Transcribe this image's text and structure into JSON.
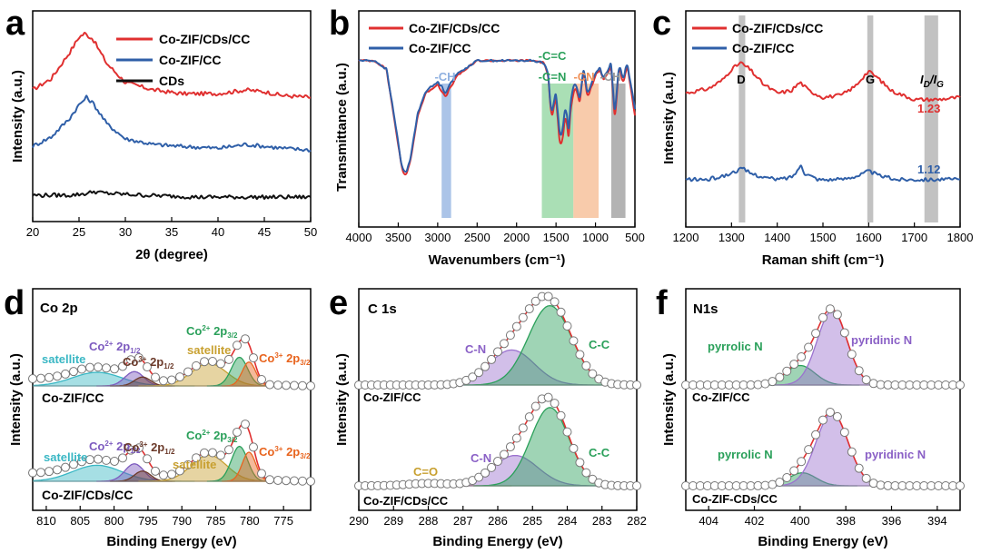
{
  "colors": {
    "red": "#e03030",
    "blue": "#2f5fa8",
    "black": "#111111",
    "cyan": "#39b7c4",
    "purple": "#7d5bbf",
    "brown": "#6b3a2a",
    "orange": "#e8641e",
    "gold": "#c8a030",
    "green": "#2aa05a",
    "teal": "#1f9c76"
  },
  "chart_data": [
    {
      "panel": "a",
      "type": "line",
      "xlabel": "2θ (degree)",
      "ylabel": "Intensity (a.u.)",
      "xlim": [
        20,
        50
      ],
      "xticks": [
        "20",
        "25",
        "30",
        "35",
        "40",
        "45",
        "50"
      ],
      "series": [
        {
          "name": "Co-ZIF/CDs/CC",
          "color": "#e03030",
          "x": [
            20,
            22,
            24,
            25,
            25.6,
            26.5,
            28,
            30,
            33,
            36,
            40,
            43,
            45,
            47,
            50
          ],
          "y": [
            0.7,
            0.76,
            0.9,
            0.98,
            1.0,
            0.97,
            0.84,
            0.74,
            0.7,
            0.68,
            0.68,
            0.7,
            0.69,
            0.67,
            0.66
          ]
        },
        {
          "name": "Co-ZIF/CC",
          "color": "#2f5fa8",
          "x": [
            20,
            22,
            24,
            25,
            25.8,
            26.5,
            28,
            30,
            33,
            36,
            40,
            43,
            45,
            47,
            50
          ],
          "y": [
            0.4,
            0.45,
            0.55,
            0.62,
            0.66,
            0.63,
            0.52,
            0.44,
            0.41,
            0.4,
            0.39,
            0.41,
            0.4,
            0.39,
            0.38
          ]
        },
        {
          "name": "CDs",
          "color": "#111111",
          "x": [
            20,
            24,
            26,
            26.5,
            28,
            32,
            38,
            44,
            50
          ],
          "y": [
            0.14,
            0.14,
            0.15,
            0.16,
            0.15,
            0.14,
            0.13,
            0.13,
            0.13
          ]
        }
      ]
    },
    {
      "panel": "b",
      "type": "line",
      "xlabel": "Wavenumbers (cm⁻¹)",
      "ylabel": "Transmittance (a.u.)",
      "xlim": [
        4000,
        500
      ],
      "xticks": [
        "4000",
        "3500",
        "3000",
        "2500",
        "2000",
        "1500",
        "1000",
        "500"
      ],
      "bands": [
        {
          "label": "-CH",
          "from": 2950,
          "to": 2830,
          "color": "#8fb0e0"
        },
        {
          "label": "-C=C\n-C=N",
          "from": 1680,
          "to": 1280,
          "color": "#8ed49c"
        },
        {
          "label": "-CN",
          "from": 1280,
          "to": 960,
          "color": "#f6b98f"
        },
        {
          "label": "-CH",
          "from": 800,
          "to": 620,
          "color": "#999999"
        }
      ],
      "series": [
        {
          "name": "Co-ZIF/CDs/CC",
          "color": "#e03030",
          "x": [
            4000,
            3800,
            3650,
            3550,
            3450,
            3400,
            3350,
            3250,
            3150,
            3000,
            2950,
            2900,
            2850,
            2750,
            2500,
            2000,
            1800,
            1650,
            1600,
            1560,
            1500,
            1450,
            1420,
            1380,
            1340,
            1310,
            1260,
            1200,
            1150,
            1100,
            1000,
            950,
            900,
            800,
            760,
            740,
            700,
            650,
            600,
            500
          ],
          "y": [
            0.97,
            0.97,
            0.93,
            0.7,
            0.46,
            0.44,
            0.5,
            0.72,
            0.82,
            0.86,
            0.83,
            0.8,
            0.84,
            0.9,
            0.97,
            0.97,
            0.97,
            0.96,
            0.9,
            0.7,
            0.8,
            0.58,
            0.6,
            0.72,
            0.62,
            0.76,
            0.85,
            0.78,
            0.92,
            0.8,
            0.9,
            0.93,
            0.88,
            0.94,
            0.72,
            0.76,
            0.95,
            0.86,
            0.95,
            0.72
          ]
        },
        {
          "name": "Co-ZIF/CC",
          "color": "#2f5fa8",
          "x": [
            4000,
            3800,
            3650,
            3550,
            3450,
            3400,
            3350,
            3250,
            3150,
            3000,
            2950,
            2900,
            2850,
            2750,
            2500,
            2000,
            1800,
            1650,
            1600,
            1560,
            1500,
            1450,
            1420,
            1380,
            1340,
            1310,
            1260,
            1200,
            1150,
            1100,
            1000,
            950,
            900,
            800,
            760,
            740,
            700,
            650,
            600,
            500
          ],
          "y": [
            0.97,
            0.97,
            0.93,
            0.71,
            0.47,
            0.45,
            0.51,
            0.73,
            0.83,
            0.87,
            0.85,
            0.82,
            0.86,
            0.91,
            0.97,
            0.97,
            0.97,
            0.96,
            0.91,
            0.72,
            0.82,
            0.62,
            0.64,
            0.76,
            0.66,
            0.8,
            0.87,
            0.8,
            0.93,
            0.82,
            0.91,
            0.94,
            0.89,
            0.95,
            0.74,
            0.78,
            0.96,
            0.88,
            0.96,
            0.75
          ]
        }
      ]
    },
    {
      "panel": "c",
      "type": "line",
      "xlabel": "Raman shift (cm⁻¹)",
      "ylabel": "Intensity (a.u.)",
      "xlim": [
        1200,
        1800
      ],
      "xticks": [
        "1200",
        "1300",
        "1400",
        "1500",
        "1600",
        "1700",
        "1800"
      ],
      "bands": [
        {
          "label": "D",
          "from": 1316,
          "to": 1330,
          "color": "#b3b3b3"
        },
        {
          "label": "G",
          "from": 1597,
          "to": 1610,
          "color": "#b3b3b3"
        },
        {
          "label": "ID/IG",
          "from": 1722,
          "to": 1752,
          "color": "#b3b3b3"
        }
      ],
      "ratio_labels": [
        {
          "value": "1.23",
          "color": "#e03030"
        },
        {
          "value": "1.12",
          "color": "#2f5fa8"
        }
      ],
      "series": [
        {
          "name": "Co-ZIF/CDs/CC",
          "color": "#e03030",
          "x": [
            1200,
            1250,
            1280,
            1300,
            1320,
            1340,
            1370,
            1400,
            1430,
            1450,
            1470,
            1500,
            1540,
            1570,
            1590,
            1600,
            1620,
            1650,
            1700,
            1750,
            1800
          ],
          "y": [
            0.62,
            0.64,
            0.68,
            0.73,
            0.76,
            0.73,
            0.66,
            0.62,
            0.63,
            0.67,
            0.63,
            0.6,
            0.61,
            0.65,
            0.7,
            0.72,
            0.69,
            0.63,
            0.59,
            0.59,
            0.6
          ]
        },
        {
          "name": "Co-ZIF/CC",
          "color": "#2f5fa8",
          "x": [
            1200,
            1250,
            1290,
            1310,
            1325,
            1340,
            1370,
            1400,
            1430,
            1445,
            1452,
            1460,
            1490,
            1540,
            1580,
            1600,
            1620,
            1660,
            1700,
            1750,
            1800
          ],
          "y": [
            0.22,
            0.22,
            0.24,
            0.26,
            0.27,
            0.25,
            0.23,
            0.22,
            0.23,
            0.26,
            0.29,
            0.25,
            0.22,
            0.22,
            0.24,
            0.26,
            0.24,
            0.22,
            0.22,
            0.22,
            0.22
          ]
        }
      ]
    },
    {
      "panel": "d",
      "type": "xps",
      "title": "Co 2p",
      "xlabel": "Binding Energy (eV)",
      "ylabel": "Intensity (a.u.)",
      "xlim": [
        812,
        771
      ],
      "xticks": [
        "810",
        "805",
        "800",
        "795",
        "790",
        "785",
        "780",
        "775"
      ],
      "spectra": [
        {
          "name": "Co-ZIF/CC",
          "peaks": [
            {
              "label": "satellite",
              "center": 802.5,
              "height": 0.2,
              "width": 3.6,
              "color": "#39b7c4"
            },
            {
              "label": "Co2+ 2p1/2",
              "center": 797.0,
              "height": 0.21,
              "width": 1.4,
              "color": "#7d5bbf"
            },
            {
              "label": "Co3+ 2p1/2",
              "center": 795.8,
              "height": 0.13,
              "width": 1.2,
              "color": "#6b3a2a"
            },
            {
              "label": "satellite",
              "center": 786.0,
              "height": 0.33,
              "width": 2.6,
              "color": "#c8a030"
            },
            {
              "label": "Co2+ 2p3/2",
              "center": 781.5,
              "height": 0.42,
              "width": 1.2,
              "color": "#2aa05a"
            },
            {
              "label": "Co3+ 2p3/2",
              "center": 780.1,
              "height": 0.35,
              "width": 1.0,
              "color": "#e8641e"
            }
          ]
        },
        {
          "name": "Co-ZIF/CDs/CC",
          "peaks": [
            {
              "label": "satellite",
              "center": 802.5,
              "height": 0.22,
              "width": 3.6,
              "color": "#39b7c4"
            },
            {
              "label": "Co2+ 2p1/2",
              "center": 797.0,
              "height": 0.24,
              "width": 1.4,
              "color": "#7d5bbf"
            },
            {
              "label": "Co3+ 2p1/2",
              "center": 795.8,
              "height": 0.14,
              "width": 1.2,
              "color": "#6b3a2a"
            },
            {
              "label": "satellite",
              "center": 786.0,
              "height": 0.36,
              "width": 2.6,
              "color": "#c8a030"
            },
            {
              "label": "Co2+ 2p3/2",
              "center": 781.5,
              "height": 0.48,
              "width": 1.2,
              "color": "#2aa05a"
            },
            {
              "label": "Co3+ 2p3/2",
              "center": 780.1,
              "height": 0.4,
              "width": 1.0,
              "color": "#e8641e"
            }
          ]
        }
      ]
    },
    {
      "panel": "e",
      "type": "xps",
      "title": "C 1s",
      "xlabel": "Binding Energy (eV)",
      "ylabel": "Intensity (a.u.)",
      "xlim": [
        290,
        282
      ],
      "xticks": [
        "290",
        "289",
        "288",
        "287",
        "286",
        "285",
        "284",
        "283",
        "282"
      ],
      "spectra": [
        {
          "name": "Co-ZIF/CC",
          "peaks": [
            {
              "label": "C-N",
              "center": 285.6,
              "height": 0.42,
              "width": 0.65,
              "color": "#9b72cf"
            },
            {
              "label": "C-C",
              "center": 284.5,
              "height": 0.95,
              "width": 0.62,
              "color": "#2aa05a"
            }
          ]
        },
        {
          "name": "Co-ZIF/CDs/CC",
          "peaks": [
            {
              "label": "C=O",
              "center": 288.0,
              "height": 0.03,
              "width": 0.6,
              "color": "#c8a030"
            },
            {
              "label": "C-N",
              "center": 285.5,
              "height": 0.38,
              "width": 0.65,
              "color": "#9b72cf"
            },
            {
              "label": "C-C",
              "center": 284.5,
              "height": 0.98,
              "width": 0.55,
              "color": "#2aa05a"
            }
          ]
        }
      ]
    },
    {
      "panel": "f",
      "type": "xps",
      "title": "N1s",
      "xlabel": "Binding Energy (eV)",
      "ylabel": "Intensity (a.u.)",
      "xlim": [
        405,
        393
      ],
      "xticks": [
        "404",
        "402",
        "400",
        "398",
        "396",
        "394"
      ],
      "spectra": [
        {
          "name": "Co-ZIF/CC",
          "peaks": [
            {
              "label": "pyrrolic N",
              "center": 400.0,
              "height": 0.25,
              "width": 0.65,
              "color": "#2aa05a"
            },
            {
              "label": "pyridinic N",
              "center": 398.6,
              "height": 0.95,
              "width": 0.65,
              "color": "#9b72cf"
            }
          ]
        },
        {
          "name": "Co-ZIF-CDs/CC",
          "peaks": [
            {
              "label": "pyrrolic N",
              "center": 399.9,
              "height": 0.17,
              "width": 0.6,
              "color": "#2aa05a"
            },
            {
              "label": "pyridinic N",
              "center": 398.6,
              "height": 0.95,
              "width": 0.7,
              "color": "#9b72cf"
            }
          ]
        }
      ]
    }
  ],
  "panels": {
    "a": {
      "letter": "a",
      "legend": [
        "Co-ZIF/CDs/CC",
        "Co-ZIF/CC",
        "CDs"
      ]
    },
    "b": {
      "letter": "b",
      "legend": [
        "Co-ZIF/CDs/CC",
        "Co-ZIF/CC"
      ],
      "band_labels": [
        "-CH",
        "-C=C",
        "-C=N",
        "-CN",
        "-CH"
      ]
    },
    "c": {
      "letter": "c",
      "legend": [
        "Co-ZIF/CDs/CC",
        "Co-ZIF/CC"
      ],
      "band_labels": [
        "D",
        "G"
      ],
      "ratio_i": "I",
      "ratio_d": "D",
      "ratio_slash": "/",
      "ratio_i2": "I",
      "ratio_g": "G"
    },
    "d": {
      "letter": "d",
      "title": "Co 2p",
      "sample_top": "Co-ZIF/CC",
      "sample_bottom": "Co-ZIF/CDs/CC",
      "lbl_satellite": "satellite",
      "lbl_co2_main": "Co",
      "lbl_co2_sup": "2+",
      "lbl_2p": " 2p",
      "lbl_sub12": "1/2",
      "lbl_sub32": "3/2",
      "lbl_co3_sup": "3+"
    },
    "e": {
      "letter": "e",
      "title": "C 1s",
      "sample_top": "Co-ZIF/CC",
      "sample_bottom": "Co-ZIF/CDs/CC",
      "lbl_cn": "C-N",
      "lbl_cc": "C-C",
      "lbl_co": "C=O"
    },
    "f": {
      "letter": "f",
      "title": "N1s",
      "sample_top": "Co-ZIF/CC",
      "sample_bottom": "Co-ZIF-CDs/CC",
      "lbl_pyrrolic": "pyrrolic N",
      "lbl_pyridinic": "pyridinic N"
    }
  }
}
